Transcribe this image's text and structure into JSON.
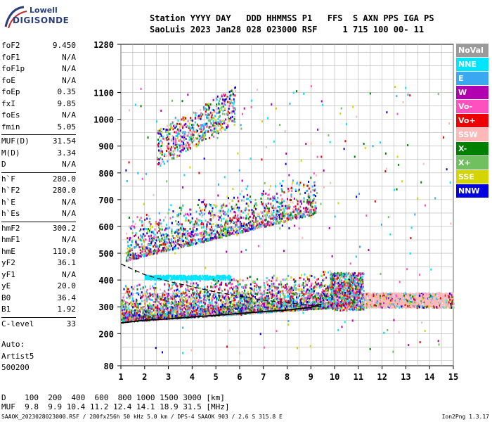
{
  "logo": {
    "line1": "Lowell",
    "line2": "DIGISONDE"
  },
  "header": {
    "line1": "Station YYYY DAY   DDD HHMMSS P1   FFS  S AXN PPS IGA PS",
    "line2": "SaoLuis 2023 Jan28 028 023000 RSF     1 715 100 00- 11"
  },
  "params": {
    "group1": [
      {
        "k": "foF2",
        "v": "9.450"
      },
      {
        "k": "foF1",
        "v": "N/A"
      },
      {
        "k": "foF1p",
        "v": "N/A"
      },
      {
        "k": "foE",
        "v": "N/A"
      },
      {
        "k": "foEp",
        "v": "0.35"
      },
      {
        "k": "fxI",
        "v": "9.85"
      },
      {
        "k": "foEs",
        "v": "N/A"
      },
      {
        "k": "fmin",
        "v": "5.05"
      }
    ],
    "group2": [
      {
        "k": "MUF(D)",
        "v": "31.54"
      },
      {
        "k": "M(D)",
        "v": "3.34"
      },
      {
        "k": "D",
        "v": "N/A"
      }
    ],
    "group3": [
      {
        "k": "h`F",
        "v": "280.0"
      },
      {
        "k": "h`F2",
        "v": "280.0"
      },
      {
        "k": "h`E",
        "v": "N/A"
      },
      {
        "k": "h`Es",
        "v": "N/A"
      }
    ],
    "group4": [
      {
        "k": "hmF2",
        "v": "300.2"
      },
      {
        "k": "hmF1",
        "v": "N/A"
      },
      {
        "k": "hmE",
        "v": "110.0"
      },
      {
        "k": "yF2",
        "v": "36.1"
      },
      {
        "k": "yF1",
        "v": "N/A"
      },
      {
        "k": "yE",
        "v": "20.0"
      },
      {
        "k": "B0",
        "v": "36.4"
      },
      {
        "k": "B1",
        "v": "1.92"
      }
    ],
    "group5": [
      {
        "k": "C-level",
        "v": "33"
      }
    ]
  },
  "auto": {
    "line1": "Auto:",
    "line2": "Artist5",
    "line3": "500200"
  },
  "legend": [
    {
      "label": "NoVal",
      "color": "#9a9a9a"
    },
    {
      "label": "NNE",
      "color": "#00e5ff"
    },
    {
      "label": "E",
      "color": "#3aa8f0"
    },
    {
      "label": "W",
      "color": "#b000b0"
    },
    {
      "label": "Vo-",
      "color": "#ff50c0"
    },
    {
      "label": "Vo+",
      "color": "#ee0000"
    },
    {
      "label": "SSW",
      "color": "#ffb8b8"
    },
    {
      "label": "X-",
      "color": "#008000"
    },
    {
      "label": "X+",
      "color": "#70c060"
    },
    {
      "label": "SSE",
      "color": "#d4d400"
    },
    {
      "label": "NNW",
      "color": "#0000e0"
    }
  ],
  "muf_table": {
    "row1": "D    100  200  400  600  800 1000 1500 3000 [km]",
    "row2": "MUF  9.8  9.9 10.4 11.2 12.4 14.1 18.9 31.5 [MHz]"
  },
  "footer": {
    "left": "SAAOK_2023028023000.RSF / 280fx256h 50 kHz 5.0 km / DPS-4 SAAOK 903 / 2.6 S 315.8 E",
    "right": "Ion2Png 1.3.17"
  },
  "chart_data": {
    "type": "scatter",
    "title": "",
    "xlabel": "",
    "ylabel": "",
    "xlim": [
      1,
      15
    ],
    "ylim": [
      80,
      1280
    ],
    "x_ticks": [
      1,
      2,
      3,
      4,
      5,
      6,
      7,
      8,
      9,
      10,
      11,
      12,
      13,
      14,
      15
    ],
    "y_ticks": [
      80,
      200,
      300,
      400,
      500,
      600,
      700,
      800,
      900,
      1000,
      1100,
      1280
    ],
    "grid": true,
    "series": [
      {
        "points": [
          [
            1.0,
            240
          ],
          [
            2.0,
            250
          ],
          [
            3.0,
            255
          ],
          [
            4.0,
            262
          ],
          [
            5.0,
            268
          ],
          [
            6.0,
            275
          ],
          [
            7.0,
            282
          ],
          [
            8.0,
            288
          ],
          [
            9.0,
            298
          ],
          [
            9.45,
            310
          ]
        ]
      },
      {
        "points": [
          [
            1.0,
            460
          ],
          [
            2.0,
            420
          ],
          [
            3.0,
            395
          ],
          [
            4.0,
            375
          ],
          [
            5.0,
            355
          ],
          [
            6.0,
            340
          ],
          [
            7.0,
            325
          ],
          [
            8.0,
            315
          ],
          [
            9.0,
            305
          ],
          [
            9.45,
            300
          ]
        ]
      }
    ]
  }
}
